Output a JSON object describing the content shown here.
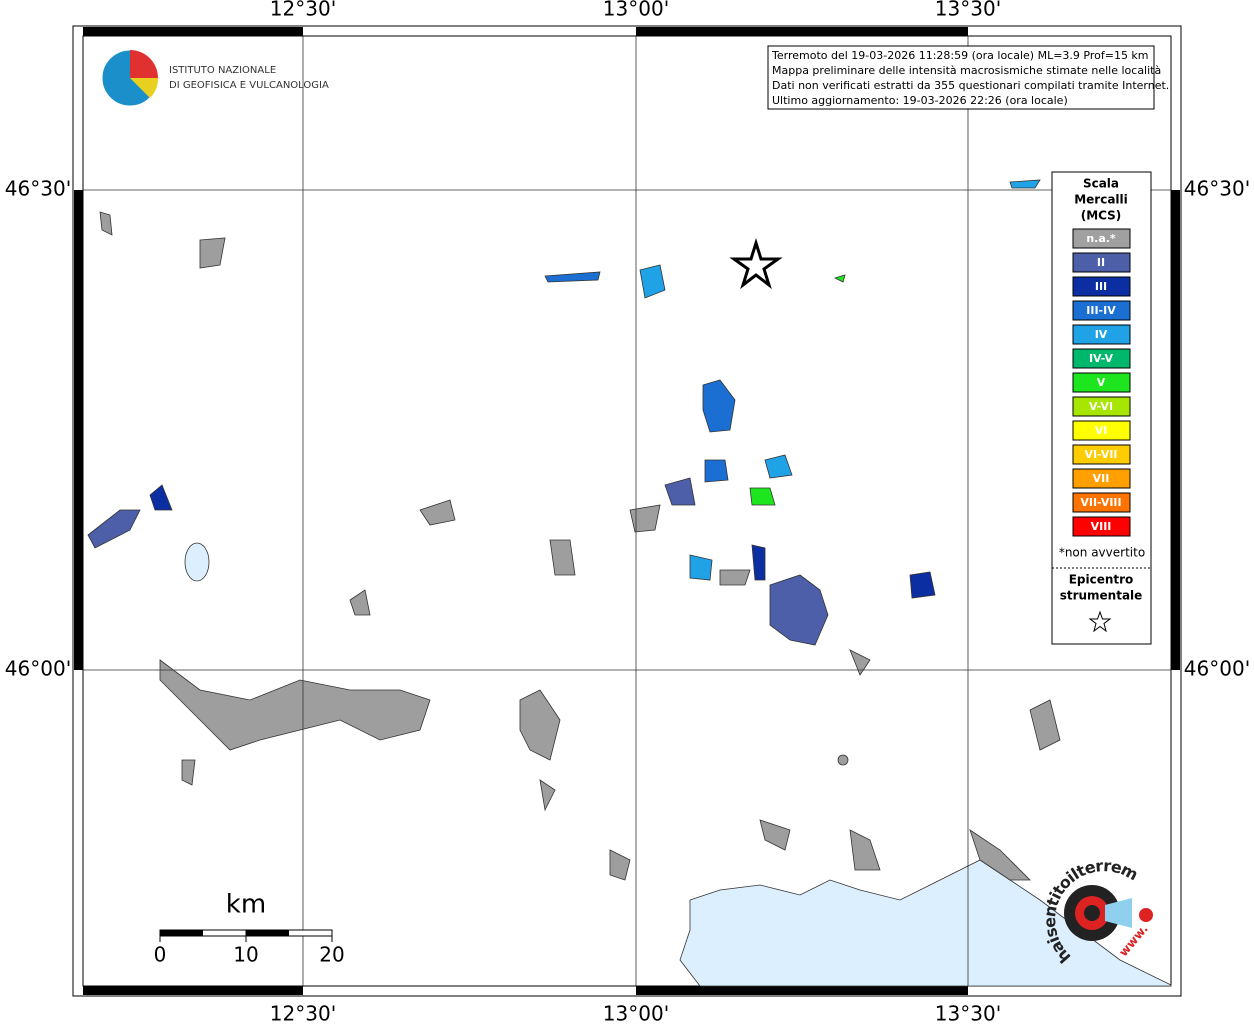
{
  "header": {
    "info_lines": [
      "Terremoto del 19-03-2026 11:28:59 (ora locale) ML=3.9 Prof=15 km",
      "Mappa preliminare delle intensità macrosismiche stimate nelle località",
      "Dati non verificati estratti da 355 questionari compilati tramite Internet.",
      "Ultimo aggiornamento: 19-03-2026 22:26 (ora locale)"
    ]
  },
  "graticule": {
    "lon_labels": [
      "12°30'",
      "13°00'",
      "13°30'"
    ],
    "lat_labels": [
      "46°30'",
      "46°00'"
    ]
  },
  "legend": {
    "title": [
      "Scala",
      "Mercalli",
      "(MCS)"
    ],
    "items": [
      {
        "label": "n.a.*",
        "color": "#a0a0a0"
      },
      {
        "label": "II",
        "color": "#4d5fa8"
      },
      {
        "label": "III",
        "color": "#0b2fa3"
      },
      {
        "label": "III-IV",
        "color": "#1b6fd2"
      },
      {
        "label": "IV",
        "color": "#1fa3e6"
      },
      {
        "label": "IV-V",
        "color": "#00b86b"
      },
      {
        "label": "V",
        "color": "#1ee61e"
      },
      {
        "label": "V-VI",
        "color": "#a6e600"
      },
      {
        "label": "VI",
        "color": "#ffff00"
      },
      {
        "label": "VI-VII",
        "color": "#ffcc00"
      },
      {
        "label": "VII",
        "color": "#ffa000"
      },
      {
        "label": "VII-VIII",
        "color": "#ff7300"
      },
      {
        "label": "VIII",
        "color": "#ff0000"
      }
    ],
    "note": "*non avvertito",
    "epicenter": [
      "Epicentro",
      "strumentale"
    ]
  },
  "scale_bar": {
    "unit": "km",
    "labels": [
      "0",
      "10",
      "20"
    ]
  },
  "logos": {
    "ingv": [
      "ISTITUTO NAZIONALE",
      "DI GEOFISICA E VULCANOLOGIA"
    ],
    "hsit": "haisentitoilterremoto.it",
    "www": "www."
  }
}
